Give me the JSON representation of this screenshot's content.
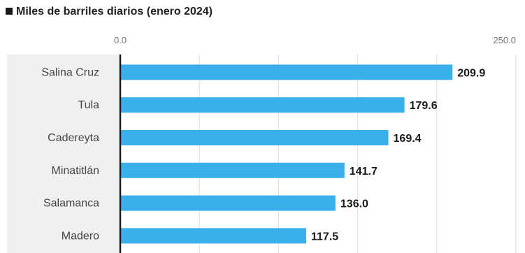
{
  "colors": {
    "bar": "#3ab0ea",
    "axis": "#1a1a1a",
    "grid": "#e2e2e2",
    "label_panel": "#f0f0f0"
  },
  "chart_data": {
    "type": "bar",
    "orientation": "horizontal",
    "subtitle": "Miles de barriles diarios (enero 2024)",
    "categories": [
      "Salina Cruz",
      "Tula",
      "Cadereyta",
      "Minatitlán",
      "Salamanca",
      "Madero"
    ],
    "values": [
      209.9,
      179.6,
      169.4,
      141.7,
      136.0,
      117.5
    ],
    "value_labels": [
      "209.9",
      "179.6",
      "169.4",
      "141.7",
      "136.0",
      "117.5"
    ],
    "xlim": [
      0,
      250
    ],
    "tick_labels": [
      "0.0",
      "250.0"
    ],
    "grid": true,
    "legend": "none"
  }
}
